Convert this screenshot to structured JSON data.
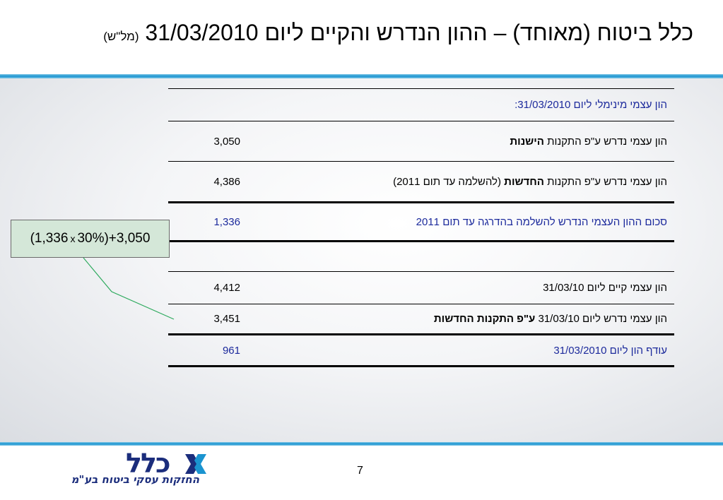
{
  "slide": {
    "title_main": "כלל ביטוח (מאוחד) – ההון הנדרש והקיים ליום 31/03/2010",
    "title_unit": "(מל\"ש)",
    "page_number": "7"
  },
  "table": {
    "header": "הון עצמי מינימלי ליום 31/03/2010:",
    "rows": [
      {
        "label_pre": "הון עצמי נדרש ע\"פ התקנות ",
        "label_bold": "הישנות",
        "label_post": "",
        "value": "3,050"
      },
      {
        "label_pre": "הון עצמי נדרש ע\"פ התקנות ",
        "label_bold": "החדשות",
        "label_post": " (להשלמה עד תום 2011)",
        "value": "4,386"
      },
      {
        "label": "סכום ההון העצמי הנדרש להשלמה בהדרגה עד תום 2011",
        "value": "1,336"
      },
      {
        "label": "הון עצמי קיים ליום 31/03/10",
        "value": "4,412"
      },
      {
        "label_pre": "הון עצמי נדרש ליום 31/03/10 ",
        "label_bold": "ע\"פ התקנות החדשות",
        "label_post": "",
        "value": "3,451"
      },
      {
        "label": "עודף הון ליום 31/03/2010",
        "value": "961"
      }
    ]
  },
  "formula": {
    "left": "(1,336",
    "times": "x",
    "right": "30%)+3,050"
  },
  "logo": {
    "word": "כלל",
    "subtitle": "החזקות עסקי ביטוח בע\"מ"
  },
  "colors": {
    "accent_blue": "#1a94d0",
    "text_blue": "#1c2a9c",
    "formula_bg": "#d4e7d8",
    "connector_green": "#2eaa5e",
    "logo_blue": "#1b2d7c"
  }
}
